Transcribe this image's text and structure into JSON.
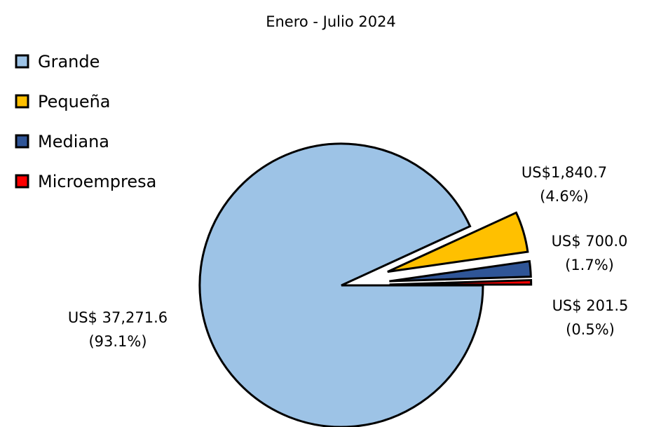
{
  "chart_data": {
    "type": "pie",
    "title": "Enero - Julio 2024",
    "legend_position": "top-left",
    "slices": [
      {
        "name": "Grande",
        "value": 37271.6,
        "percent": 93.1,
        "color": "#9dc3e6",
        "value_label": "US$ 37,271.6",
        "percent_label": "(93.1%)",
        "exploded": false
      },
      {
        "name": "Pequeña",
        "value": 1840.7,
        "percent": 4.6,
        "color": "#ffc000",
        "value_label": "US$1,840.7",
        "percent_label": "(4.6%)",
        "exploded": true
      },
      {
        "name": "Mediana",
        "value": 700.0,
        "percent": 1.7,
        "color": "#2f5597",
        "value_label": "US$ 700.0",
        "percent_label": "(1.7%)",
        "exploded": true
      },
      {
        "name": "Microempresa",
        "value": 201.5,
        "percent": 0.5,
        "color": "#ff0000",
        "value_label": "US$ 201.5",
        "percent_label": "(0.5%)",
        "exploded": true
      }
    ]
  }
}
